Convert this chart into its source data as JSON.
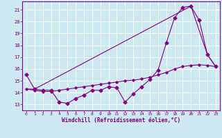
{
  "xlabel": "Windchill (Refroidissement éolien,°C)",
  "background_color": "#cce8f0",
  "grid_color": "#ffffff",
  "line_color": "#800080",
  "xlim": [
    -0.5,
    23.5
  ],
  "ylim": [
    12.5,
    21.7
  ],
  "yticks": [
    13,
    14,
    15,
    16,
    17,
    18,
    19,
    20,
    21
  ],
  "xticks": [
    0,
    1,
    2,
    3,
    4,
    5,
    6,
    7,
    8,
    9,
    10,
    11,
    12,
    13,
    14,
    15,
    16,
    17,
    18,
    19,
    20,
    21,
    22,
    23
  ],
  "series1_x": [
    0,
    1,
    2,
    3,
    4,
    5,
    6,
    7,
    8,
    9,
    10,
    11,
    12,
    13,
    14,
    15,
    16,
    17,
    18,
    19,
    20,
    21,
    22,
    23
  ],
  "series1_y": [
    15.5,
    14.3,
    14.2,
    14.2,
    13.2,
    13.1,
    13.5,
    13.8,
    14.2,
    14.2,
    14.5,
    14.4,
    13.2,
    13.9,
    14.5,
    15.1,
    15.9,
    18.2,
    20.3,
    21.2,
    21.3,
    20.1,
    17.2,
    16.2
  ],
  "series2_x": [
    0,
    1,
    2,
    3,
    4,
    5,
    6,
    7,
    8,
    9,
    10,
    11,
    12,
    13,
    14,
    15,
    16,
    17,
    18,
    19,
    20,
    21,
    22,
    23
  ],
  "series2_y": [
    14.3,
    14.2,
    14.1,
    14.1,
    14.2,
    14.3,
    14.4,
    14.5,
    14.6,
    14.7,
    14.8,
    14.9,
    15.0,
    15.05,
    15.15,
    15.3,
    15.5,
    15.7,
    16.0,
    16.2,
    16.3,
    16.35,
    16.3,
    16.2
  ],
  "series3_x": [
    0,
    1,
    20,
    22,
    23
  ],
  "series3_y": [
    14.3,
    14.3,
    21.3,
    17.2,
    16.2
  ]
}
